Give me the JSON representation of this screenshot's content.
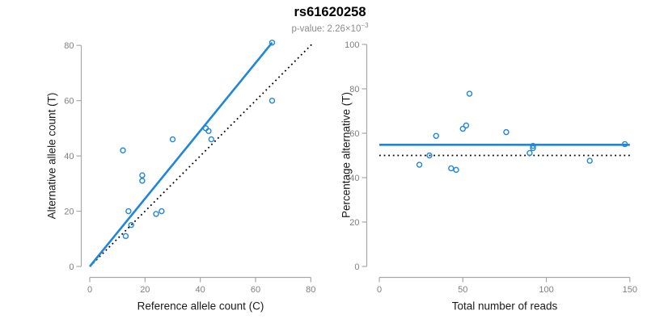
{
  "header": {
    "title": "rs61620258",
    "subtitle_prefix": "p-value: ",
    "subtitle_base": "2.26×10",
    "subtitle_exponent": "−3"
  },
  "colors": {
    "accent": "#1F86DC",
    "reference_line": "#000000",
    "axis": "#A8A8A8",
    "tick_label": "#7F7F7F",
    "axis_label": "#1A1A1A",
    "subtitle": "#8C8C8C",
    "background": "#FFFFFF"
  },
  "chart_data": [
    {
      "type": "scatter",
      "xlabel": "Reference allele count (C)",
      "ylabel": "Alternative allele count (T)",
      "xlim": [
        0,
        80
      ],
      "ylim": [
        0,
        80
      ],
      "xticks": [
        0,
        20,
        40,
        60,
        80
      ],
      "yticks": [
        0,
        20,
        40,
        60,
        80
      ],
      "grid": false,
      "legend": "none",
      "marker": "open-circle",
      "points": [
        [
          12,
          42
        ],
        [
          13,
          11
        ],
        [
          14,
          20
        ],
        [
          15,
          15
        ],
        [
          19,
          31
        ],
        [
          19,
          33
        ],
        [
          24,
          19
        ],
        [
          26,
          20
        ],
        [
          30,
          46
        ],
        [
          42,
          50
        ],
        [
          43,
          49
        ],
        [
          44,
          46
        ],
        [
          66,
          60
        ],
        [
          66,
          81
        ]
      ],
      "lines": [
        {
          "role": "fit",
          "style": "solid",
          "x1": 0,
          "y1": 0,
          "x2": 66,
          "y2": 81
        },
        {
          "role": "reference",
          "style": "dotted",
          "x1": 0,
          "y1": 0,
          "x2": 80.7,
          "y2": 80.7
        }
      ]
    },
    {
      "type": "scatter",
      "xlabel": "Total number of reads",
      "ylabel": "Percentage alternative (T)",
      "xlim": [
        0,
        150
      ],
      "ylim": [
        0,
        100
      ],
      "xticks": [
        0,
        50,
        100,
        150
      ],
      "yticks": [
        0,
        20,
        40,
        60,
        80,
        100
      ],
      "grid": false,
      "legend": "none",
      "marker": "open-circle",
      "points": [
        [
          24,
          45.8
        ],
        [
          30,
          50
        ],
        [
          34,
          58.8
        ],
        [
          43,
          44.2
        ],
        [
          46,
          43.5
        ],
        [
          50,
          62
        ],
        [
          52,
          63.5
        ],
        [
          54,
          77.8
        ],
        [
          76,
          60.5
        ],
        [
          90,
          51.1
        ],
        [
          92,
          53.3
        ],
        [
          92,
          54.3
        ],
        [
          126,
          47.6
        ],
        [
          147,
          55.1
        ]
      ],
      "lines": [
        {
          "role": "fit",
          "style": "solid",
          "x1": 0,
          "y1": 54.8,
          "x2": 150,
          "y2": 54.8
        },
        {
          "role": "reference",
          "style": "dotted",
          "x1": 0,
          "y1": 50,
          "x2": 150,
          "y2": 50
        }
      ]
    }
  ]
}
